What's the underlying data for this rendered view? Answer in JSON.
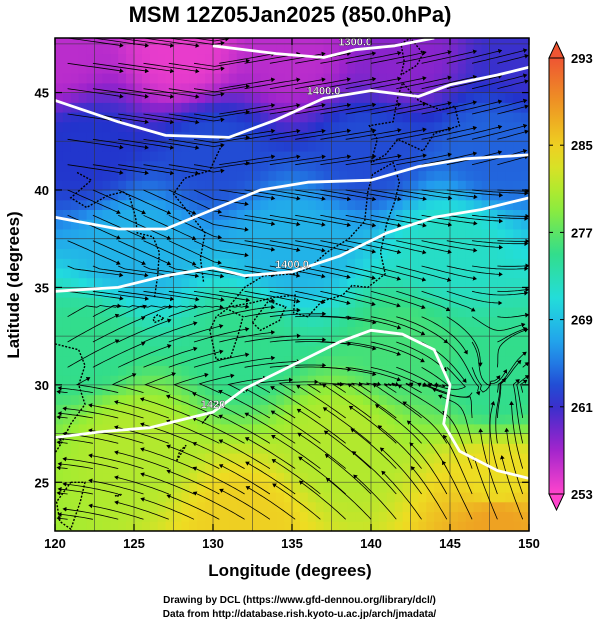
{
  "chart_data": {
    "type": "heatmap",
    "title": "MSM 12Z05Jan2025 (850.0hPa)",
    "xlabel": "Longitude (degrees)",
    "ylabel": "Latitude  (degrees)",
    "xlim": [
      120,
      150
    ],
    "ylim": [
      22.5,
      47.8
    ],
    "xticks": [
      120,
      125,
      130,
      135,
      140,
      145,
      150
    ],
    "yticks": [
      25,
      30,
      35,
      40,
      45
    ],
    "colorbar": {
      "min": 253,
      "max": 293,
      "ticks": [
        293,
        285,
        277,
        269,
        261,
        253
      ],
      "colors": [
        "#ff44cc",
        "#9922cc",
        "#2233cc",
        "#2299ee",
        "#22dddd",
        "#33dd88",
        "#99ee33",
        "#eedd22",
        "#ee9922",
        "#ee5533"
      ]
    },
    "temperature_field": [
      {
        "lon": 120,
        "lat": 47,
        "value": 256
      },
      {
        "lon": 128,
        "lat": 47,
        "value": 254
      },
      {
        "lon": 135,
        "lat": 47,
        "value": 256
      },
      {
        "lon": 142,
        "lat": 47,
        "value": 258
      },
      {
        "lon": 150,
        "lat": 47,
        "value": 261
      },
      {
        "lon": 122,
        "lat": 42,
        "value": 262
      },
      {
        "lon": 130,
        "lat": 42,
        "value": 263
      },
      {
        "lon": 140,
        "lat": 42,
        "value": 263
      },
      {
        "lon": 148,
        "lat": 42,
        "value": 264
      },
      {
        "lon": 125,
        "lat": 37,
        "value": 268
      },
      {
        "lon": 135,
        "lat": 37,
        "value": 268
      },
      {
        "lon": 145,
        "lat": 37,
        "value": 272
      },
      {
        "lon": 122,
        "lat": 32,
        "value": 275
      },
      {
        "lon": 132,
        "lat": 32,
        "value": 275
      },
      {
        "lon": 142,
        "lat": 32,
        "value": 276
      },
      {
        "lon": 148,
        "lat": 30,
        "value": 275
      },
      {
        "lon": 125,
        "lat": 27,
        "value": 281
      },
      {
        "lon": 138,
        "lat": 27,
        "value": 281
      },
      {
        "lon": 148,
        "lat": 25,
        "value": 284
      },
      {
        "lon": 132,
        "lat": 23,
        "value": 285
      },
      {
        "lon": 148,
        "lat": 23,
        "value": 288
      }
    ],
    "contours": [
      {
        "label": "1300.0",
        "points": [
          [
            130,
            47.4
          ],
          [
            134,
            47.0
          ],
          [
            137,
            46.8
          ],
          [
            139,
            47.2
          ],
          [
            141.5,
            47.4
          ],
          [
            144,
            47.8
          ]
        ]
      },
      {
        "label": "1400.0",
        "points": [
          [
            120,
            44.6
          ],
          [
            124,
            43.5
          ],
          [
            127,
            42.8
          ],
          [
            131,
            42.7
          ],
          [
            134,
            43.6
          ],
          [
            137,
            44.7
          ],
          [
            140,
            45.1
          ],
          [
            143,
            44.8
          ],
          [
            145,
            45.4
          ],
          [
            148,
            45.9
          ],
          [
            150,
            46.3
          ]
        ]
      },
      {
        "label": "",
        "points": [
          [
            120,
            38.6
          ],
          [
            124,
            38.0
          ],
          [
            127,
            38.0
          ],
          [
            130,
            39.0
          ],
          [
            133,
            40.0
          ],
          [
            136,
            40.4
          ],
          [
            140,
            40.5
          ],
          [
            143,
            41.2
          ],
          [
            146,
            41.6
          ],
          [
            150,
            41.8
          ]
        ]
      },
      {
        "label": "1400.0",
        "points": [
          [
            120,
            34.8
          ],
          [
            124,
            35.0
          ],
          [
            127,
            35.6
          ],
          [
            130,
            36.0
          ],
          [
            132,
            35.6
          ],
          [
            135,
            35.8
          ],
          [
            138,
            36.6
          ],
          [
            141,
            37.8
          ],
          [
            144,
            38.6
          ],
          [
            147,
            39.0
          ],
          [
            150,
            39.6
          ]
        ]
      },
      {
        "label": "1420",
        "points": [
          [
            120,
            27.3
          ],
          [
            123,
            27.6
          ],
          [
            126,
            27.8
          ],
          [
            128,
            28.2
          ],
          [
            130,
            28.6
          ],
          [
            132,
            29.8
          ],
          [
            134,
            30.6
          ],
          [
            136,
            31.4
          ],
          [
            138,
            32.2
          ]
        ]
      },
      {
        "label": "",
        "points": [
          [
            138,
            32.2
          ],
          [
            140,
            32.8
          ],
          [
            142,
            32.6
          ],
          [
            144,
            31.8
          ],
          [
            145,
            30.0
          ],
          [
            144.6,
            28.0
          ],
          [
            145.6,
            26.6
          ],
          [
            148,
            25.6
          ],
          [
            150,
            25.2
          ]
        ]
      }
    ],
    "streamline_vortices": [
      {
        "lon": 147.5,
        "lat": 30.3
      }
    ]
  },
  "credits": {
    "line1": "Drawing by DCL (https://www.gfd-dennou.org/library/dcl/)",
    "line2": "Data from http://database.rish.kyoto-u.ac.jp/arch/jmadata/"
  }
}
